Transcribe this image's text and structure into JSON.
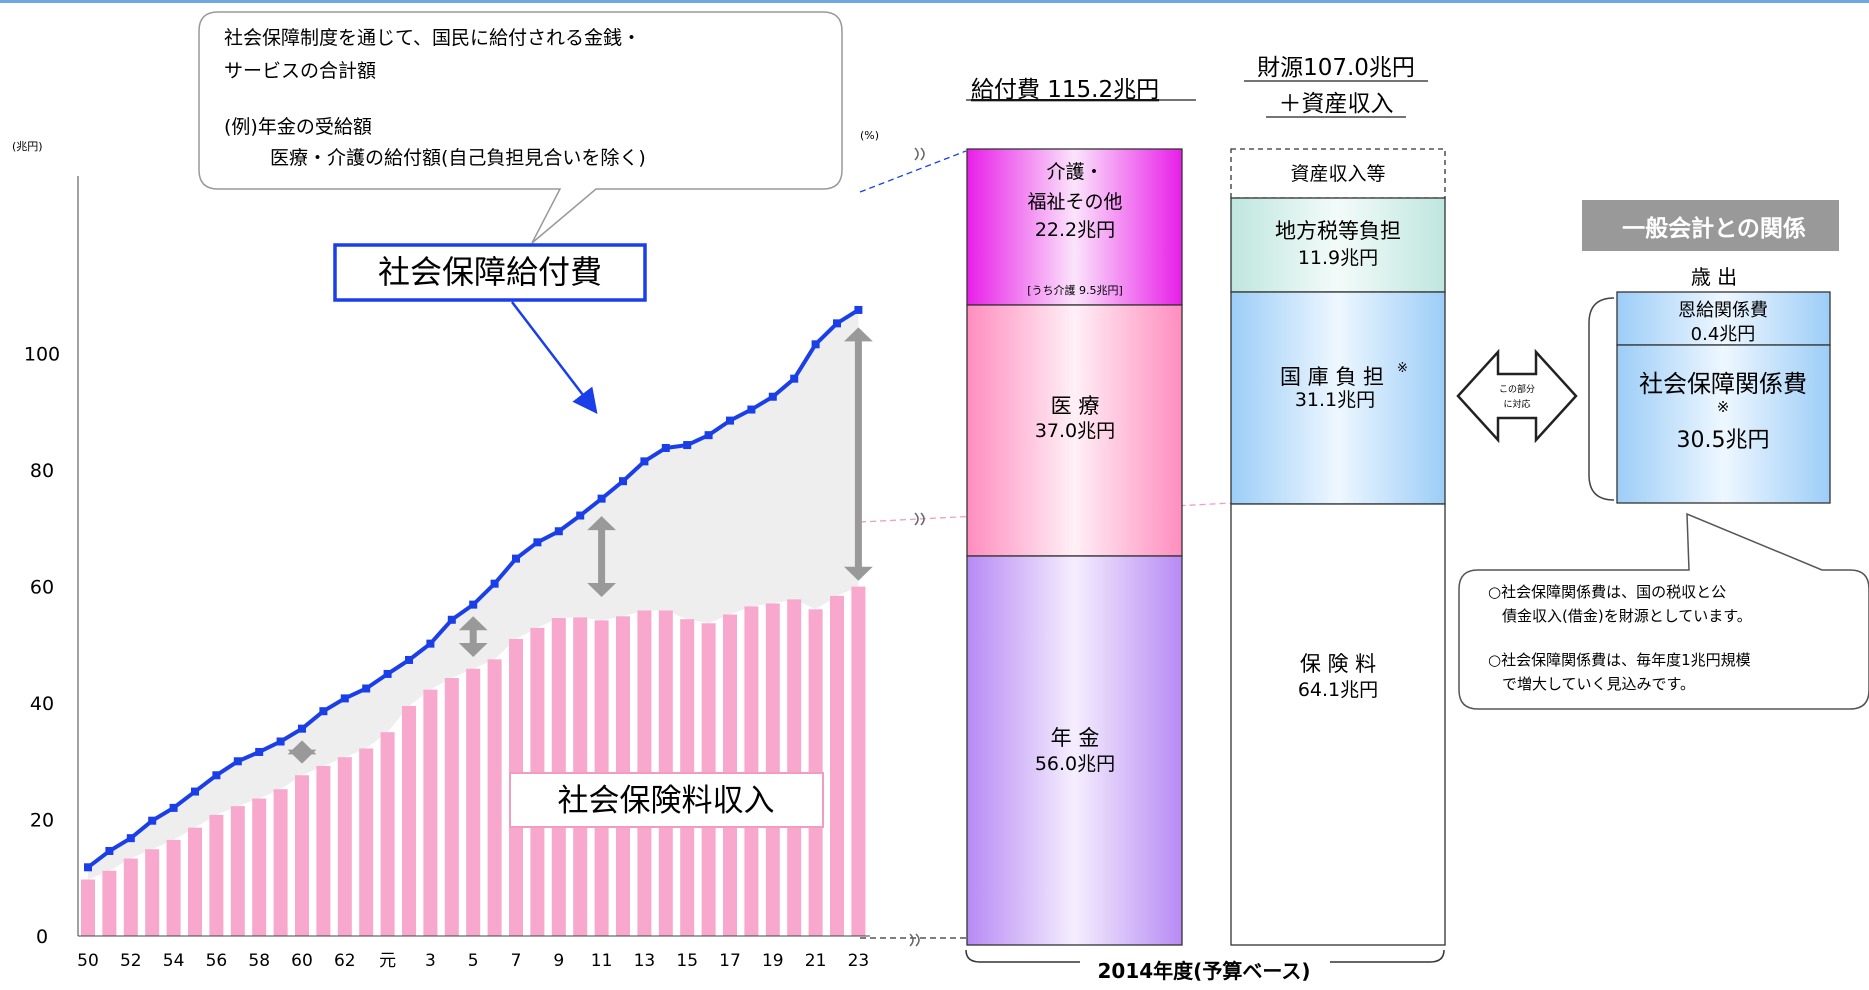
{
  "unit_left": "(兆円)",
  "unit_right": "(%)",
  "callout": {
    "line1": "社会保障制度を通じて、国民に給付される金銭・",
    "line2": "サービスの合計額",
    "line3": "(例)年金の受給額",
    "line4": "医療・介護の給付額(自己負担見合いを除く)"
  },
  "label_benefit": "社会保障給付費",
  "label_premium": "社会保険料収入",
  "chart_data": {
    "type": "bar",
    "title": "",
    "xlabel": "",
    "ylabel": "(兆円)",
    "ylim": [
      0,
      110
    ],
    "yticks": [
      0,
      20,
      40,
      60,
      80,
      100
    ],
    "x_tick_labels": [
      "50",
      "52",
      "54",
      "56",
      "58",
      "60",
      "62",
      "元",
      "3",
      "5",
      "7",
      "9",
      "11",
      "13",
      "15",
      "17",
      "19",
      "21",
      "23"
    ],
    "categories": [
      "50",
      "51",
      "52",
      "53",
      "54",
      "55",
      "56",
      "57",
      "58",
      "59",
      "60",
      "61",
      "62",
      "63",
      "元",
      "2",
      "3",
      "4",
      "5",
      "6",
      "7",
      "8",
      "9",
      "10",
      "11",
      "12",
      "13",
      "14",
      "15",
      "16",
      "17",
      "18",
      "19",
      "20",
      "21",
      "22",
      "23"
    ],
    "series": [
      {
        "name": "社会保障給付費",
        "kind": "line",
        "color": "#1a3ee8",
        "values": [
          11.8,
          14.6,
          16.8,
          19.8,
          22.0,
          24.8,
          27.6,
          30.0,
          31.6,
          33.4,
          35.6,
          38.6,
          40.8,
          42.5,
          45.0,
          47.4,
          50.2,
          54.3,
          56.9,
          60.5,
          64.8,
          67.6,
          69.5,
          72.2,
          75.1,
          78.1,
          81.5,
          83.8,
          84.3,
          86.0,
          88.5,
          90.4,
          92.6,
          95.7,
          101.6,
          105.2,
          107.5
        ]
      },
      {
        "name": "社会保険料収入",
        "kind": "bar",
        "color": "#f7a8cc",
        "values": [
          9.7,
          11.2,
          13.3,
          14.9,
          16.5,
          18.6,
          20.8,
          22.3,
          23.6,
          25.2,
          27.6,
          29.2,
          30.7,
          32.2,
          35.0,
          39.5,
          42.3,
          44.3,
          45.9,
          47.5,
          51.0,
          52.9,
          54.6,
          54.7,
          54.2,
          54.9,
          55.9,
          55.9,
          54.4,
          53.7,
          55.2,
          56.6,
          57.1,
          57.8,
          56.1,
          58.4,
          60.0
        ]
      }
    ]
  },
  "stack_benefit": {
    "title": "給付費 115.2兆円",
    "segments": [
      {
        "line1": "介護・",
        "line2": "福祉その他",
        "line3": "22.2兆円",
        "note": "[うち介護 9.5兆円]"
      },
      {
        "line1": "医 療",
        "line2": "37.0兆円"
      },
      {
        "line1": "年 金",
        "line2": "56.0兆円"
      }
    ]
  },
  "stack_source": {
    "title1": "財源107.0兆円",
    "title2": "＋資産収入",
    "segments": [
      {
        "line1": "資産収入等"
      },
      {
        "line1": "地方税等負担",
        "line2": "11.9兆円"
      },
      {
        "line1": "国 庫 負 担",
        "mark": "※",
        "line2": "31.1兆円"
      },
      {
        "line1": "保 険 料",
        "line2": "64.1兆円"
      }
    ]
  },
  "year_label": "2014年度(予算ベース)",
  "arrow_label_1": "この部分",
  "arrow_label_2": "に対応",
  "general_account": {
    "tab": "一般会計との関係",
    "expenditure": "歳 出",
    "box1_line1": "恩給関係費",
    "box1_line2": "0.4兆円",
    "box2_line1": "社会保障関係費",
    "box2_mark": "※",
    "box2_line2": "30.5兆円"
  },
  "notes": {
    "n1a": "○社会保障関係費は、国の税収と公",
    "n1b": "債金収入(借金)を財源としています。",
    "n2a": "○社会保障関係費は、毎年度1兆円規模",
    "n2b": "で増大していく見込みです。"
  },
  "colors": {
    "line": "#1a3ee8",
    "bar": "#f7a8cc",
    "fill_gap": "#efefef",
    "arrow": "#999999",
    "kaigo": "#f02ff0",
    "iryo": "#ff8fc0",
    "nenkin": "#b98cf5",
    "chiho": "#bfe6df",
    "kokko": "#9dcdf7"
  }
}
